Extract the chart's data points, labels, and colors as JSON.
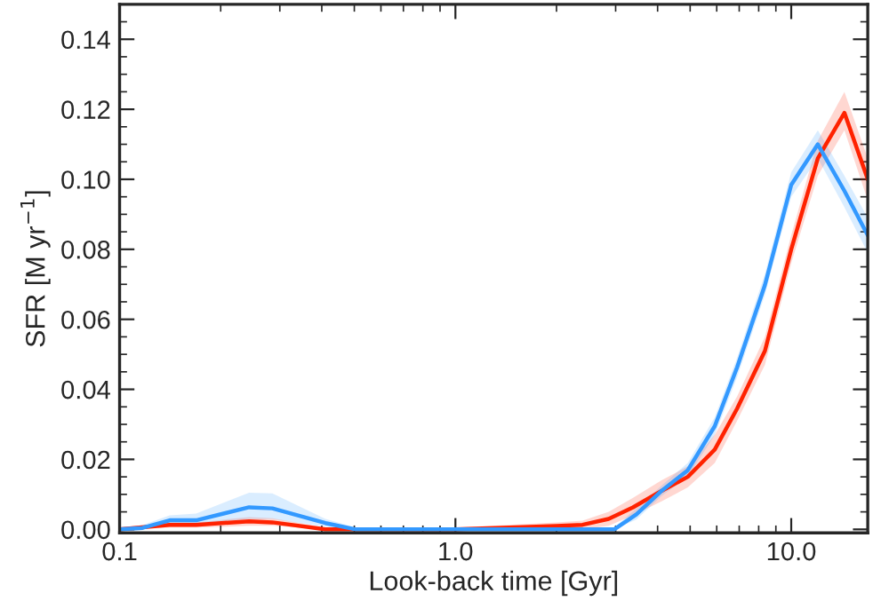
{
  "chart_data": {
    "type": "line",
    "xlabel": "Look-back time [Gyr]",
    "ylabel": "SFR [M yr$^{−1}$]",
    "log": "x",
    "grid": false,
    "legend": false,
    "marker": "none",
    "line_style": "solid",
    "xlim": [
      0.1,
      16.9
    ],
    "xticks": [
      {
        "value": 0.1,
        "label": "0.1"
      },
      {
        "value": 1,
        "label": "1.0"
      },
      {
        "value": 10,
        "label": "10.0"
      }
    ],
    "ylim": [
      -0.001,
      0.15
    ],
    "yticks": [
      {
        "value": 0,
        "label": "0.00"
      },
      {
        "value": 0.02,
        "label": "0.02"
      },
      {
        "value": 0.04,
        "label": "0.04"
      },
      {
        "value": 0.06,
        "label": "0.06"
      },
      {
        "value": 0.08,
        "label": "0.08"
      },
      {
        "value": 0.1,
        "label": "0.10"
      },
      {
        "value": 0.12,
        "label": "0.12"
      },
      {
        "value": 0.14,
        "label": "0.14"
      }
    ],
    "series": [
      {
        "color": "#ff2200",
        "x": [
          0.1,
          0.141,
          0.169,
          0.243,
          0.285,
          0.41,
          0.505,
          1.0,
          2.0,
          2.39,
          2.86,
          3.38,
          4.11,
          4.92,
          5.92,
          6.9,
          8.35,
          10.0,
          12.0,
          14.4,
          16.9
        ],
        "values": [
          0,
          0.0013,
          0.0013,
          0.0023,
          0.002,
          0,
          0,
          0,
          0.001,
          0.0013,
          0.003,
          0.0063,
          0.011,
          0.015,
          0.0228,
          0.0345,
          0.051,
          0.08,
          0.106,
          0.119,
          0.1
        ],
        "lower": [
          0,
          0.0005,
          0.0005,
          0.001,
          0.001,
          0,
          0,
          0,
          0,
          0,
          0.001,
          0.004,
          0.008,
          0.012,
          0.019,
          0.031,
          0.047,
          0.076,
          0.101,
          0.114,
          0.094
        ],
        "upper": [
          0.0005,
          0.002,
          0.002,
          0.0035,
          0.0032,
          0.0005,
          0,
          0.0005,
          0.002,
          0.0025,
          0.005,
          0.009,
          0.014,
          0.018,
          0.027,
          0.038,
          0.055,
          0.084,
          0.111,
          0.125,
          0.106
        ]
      },
      {
        "color": "#3399ff",
        "x": [
          0.1,
          0.117,
          0.141,
          0.169,
          0.243,
          0.285,
          0.41,
          0.505,
          0.62,
          2.97,
          3.46,
          4.11,
          4.92,
          5.92,
          6.9,
          8.35,
          10.0,
          12.0,
          14.4,
          16.9
        ],
        "values": [
          0,
          0.0004,
          0.0026,
          0.0026,
          0.0063,
          0.006,
          0.0018,
          0,
          0,
          0,
          0.0043,
          0.011,
          0.0169,
          0.0295,
          0.0463,
          0.0698,
          0.0984,
          0.11,
          0.0967,
          0.084
        ],
        "lower": [
          0,
          0,
          0.0015,
          0.0015,
          0.003,
          0.003,
          0.0008,
          0,
          0,
          0,
          0.0028,
          0.0095,
          0.015,
          0.027,
          0.0435,
          0.067,
          0.095,
          0.106,
          0.092,
          0.079
        ],
        "upper": [
          0.0005,
          0.0012,
          0.004,
          0.0045,
          0.0105,
          0.0103,
          0.003,
          0.0005,
          0,
          0.0005,
          0.006,
          0.0125,
          0.019,
          0.032,
          0.049,
          0.073,
          0.102,
          0.114,
          0.101,
          0.089
        ]
      }
    ]
  }
}
